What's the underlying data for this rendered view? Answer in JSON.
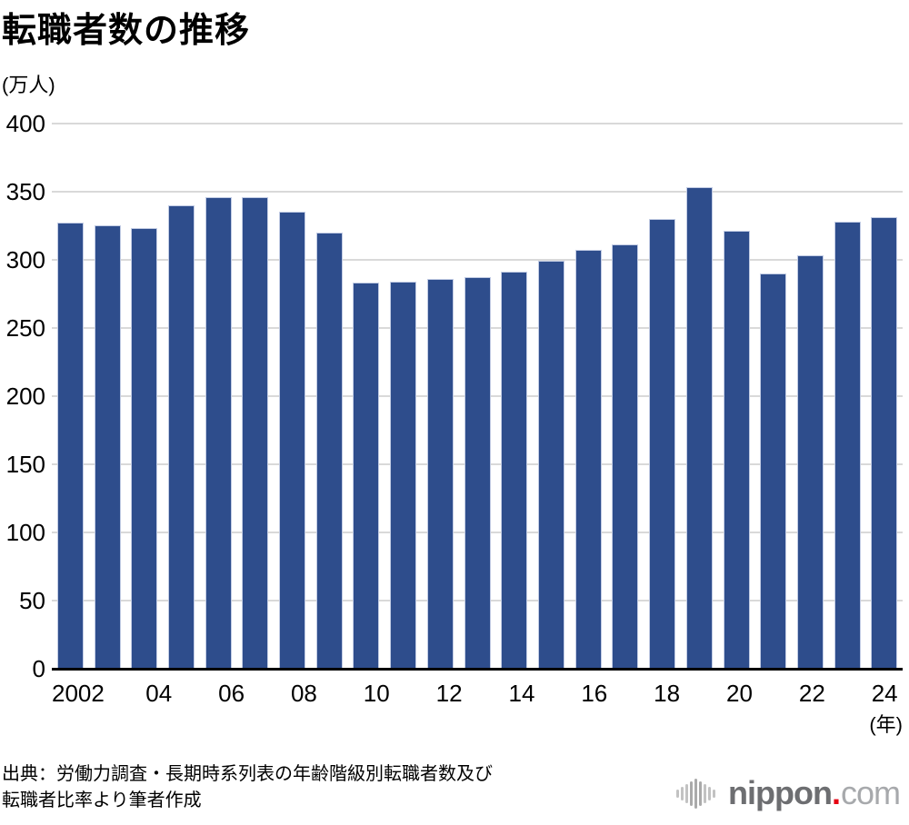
{
  "page_title": "転職者数の推移",
  "chart_data": {
    "type": "bar",
    "title": "転職者数の推移",
    "unit_label": "(万人)",
    "x_unit_label": "(年)",
    "categories": [
      "2002",
      "2003",
      "2004",
      "2005",
      "2006",
      "2007",
      "2008",
      "2009",
      "2010",
      "2011",
      "2012",
      "2013",
      "2014",
      "2015",
      "2016",
      "2017",
      "2018",
      "2019",
      "2020",
      "2021",
      "2022",
      "2023",
      "2024"
    ],
    "values": [
      327,
      325,
      323,
      340,
      346,
      346,
      335,
      320,
      283,
      284,
      286,
      287,
      291,
      299,
      307,
      311,
      330,
      353,
      321,
      290,
      303,
      328,
      331
    ],
    "ylabel": "(万人)",
    "xlabel": "(年)",
    "ylim": [
      0,
      400
    ],
    "y_ticks": [
      400,
      350,
      300,
      250,
      200,
      150,
      100,
      50,
      0
    ],
    "x_tick_labels": [
      {
        "i": 0,
        "label": "2002"
      },
      {
        "i": 2,
        "label": "04"
      },
      {
        "i": 4,
        "label": "06"
      },
      {
        "i": 6,
        "label": "08"
      },
      {
        "i": 8,
        "label": "10"
      },
      {
        "i": 10,
        "label": "12"
      },
      {
        "i": 12,
        "label": "14"
      },
      {
        "i": 14,
        "label": "16"
      },
      {
        "i": 16,
        "label": "18"
      },
      {
        "i": 18,
        "label": "20"
      },
      {
        "i": 20,
        "label": "22"
      },
      {
        "i": 22,
        "label": "24"
      }
    ],
    "grid": true,
    "legend_position": "none",
    "bar_color": "#2e4d8c",
    "bar_border_color": "#c2cce4",
    "gridline_color": "#d9d9d9",
    "axis_color": "#000000"
  },
  "footer": {
    "source_line1": "出典：労働力調査・長期時系列表の年齢階級別転職者数及び",
    "source_line2": "転職者比率より筆者作成",
    "logo": {
      "icon": "soundwave-bars-icon",
      "name": "nippon",
      "dot": ".",
      "tld": "com",
      "name_color": "#6d6e71",
      "dot_color": "#e60012",
      "tld_color": "#a7a9ac",
      "icon_bar_heights": [
        9,
        15,
        21,
        27,
        33,
        27,
        21,
        15,
        9
      ]
    }
  }
}
